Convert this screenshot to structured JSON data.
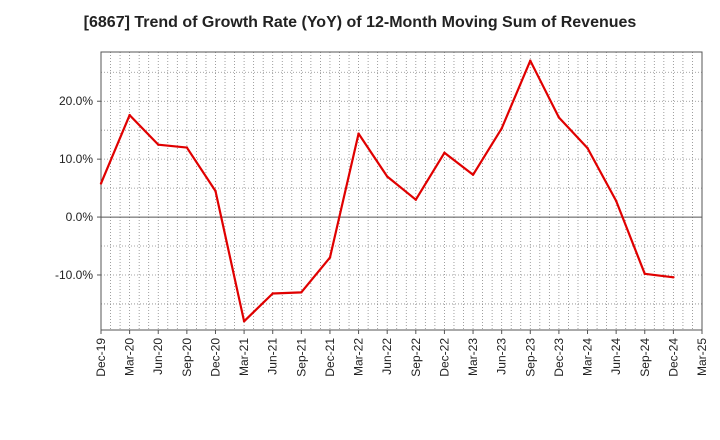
{
  "chart_data": {
    "type": "line",
    "title": "[6867]  Trend of Growth Rate (YoY) of 12-Month Moving Sum of Revenues",
    "xlabel": "",
    "ylabel": "",
    "x_ticks": [
      "Dec-19",
      "Mar-20",
      "Jun-20",
      "Sep-20",
      "Dec-20",
      "Mar-21",
      "Jun-21",
      "Sep-21",
      "Dec-21",
      "Mar-22",
      "Jun-22",
      "Sep-22",
      "Dec-22",
      "Mar-23",
      "Jun-23",
      "Sep-23",
      "Dec-23",
      "Mar-24",
      "Jun-24",
      "Sep-24",
      "Dec-24",
      "Mar-25"
    ],
    "y_ticks": [
      {
        "value": 20,
        "label": "20.0%"
      },
      {
        "value": 10,
        "label": "10.0%"
      },
      {
        "value": 0,
        "label": "0.0%"
      },
      {
        "value": -10,
        "label": "-10.0%"
      }
    ],
    "ylim": [
      -19.5,
      28.5
    ],
    "grid": true,
    "series": [
      {
        "color": "#e00000",
        "x": [
          "Dec-19",
          "Mar-20",
          "Jun-20",
          "Sep-20",
          "Dec-20",
          "Mar-21",
          "Jun-21",
          "Sep-21",
          "Dec-21",
          "Mar-22",
          "Jun-22",
          "Sep-22",
          "Dec-22",
          "Mar-23",
          "Jun-23",
          "Sep-23",
          "Dec-23",
          "Mar-24",
          "Jun-24",
          "Sep-24",
          "Dec-24"
        ],
        "values": [
          5.8,
          17.6,
          12.5,
          12.0,
          4.5,
          -18.0,
          -13.2,
          -13.0,
          -7.0,
          14.4,
          7.0,
          3.0,
          11.1,
          7.3,
          15.3,
          27.0,
          17.2,
          11.9,
          2.8,
          -9.8,
          -10.4
        ]
      }
    ]
  }
}
